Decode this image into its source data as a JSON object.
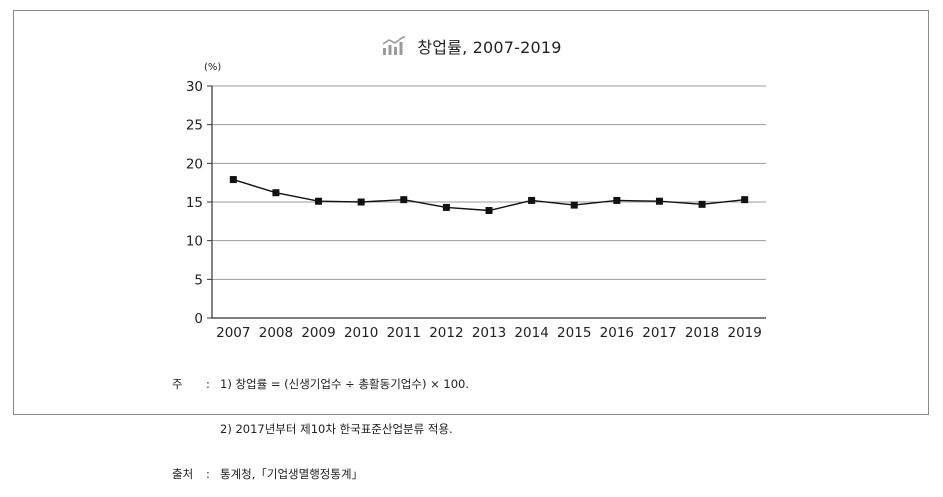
{
  "title": "창업률, 2007-2019",
  "icon": "bar-chart-trend-icon",
  "chart_data": {
    "type": "line",
    "title": "창업률, 2007-2019",
    "ylabel": "(%)",
    "xlabel": "",
    "categories": [
      "2007",
      "2008",
      "2009",
      "2010",
      "2011",
      "2012",
      "2013",
      "2014",
      "2015",
      "2016",
      "2017",
      "2018",
      "2019"
    ],
    "series": [
      {
        "values": [
          17.9,
          16.2,
          15.1,
          15.0,
          15.3,
          14.3,
          13.9,
          15.2,
          14.6,
          15.2,
          15.1,
          14.7,
          15.3
        ]
      }
    ],
    "ylim": [
      0,
      30
    ],
    "yticks": [
      "0",
      "5",
      "10",
      "15",
      "20",
      "25",
      "30"
    ],
    "grid": true,
    "marker": "square",
    "line_color": "#111111",
    "grid_color": "#9a9a9a"
  },
  "notes": {
    "note_label": "주",
    "note_1": "1) 창업률 = (신생기업수 ÷ 총활동기업수) × 100.",
    "note_2": "2) 2017년부터 제10차 한국표준산업분류 적용.",
    "source_label": "출처",
    "source_text": "통계청,「기업생멸행정통계」"
  }
}
